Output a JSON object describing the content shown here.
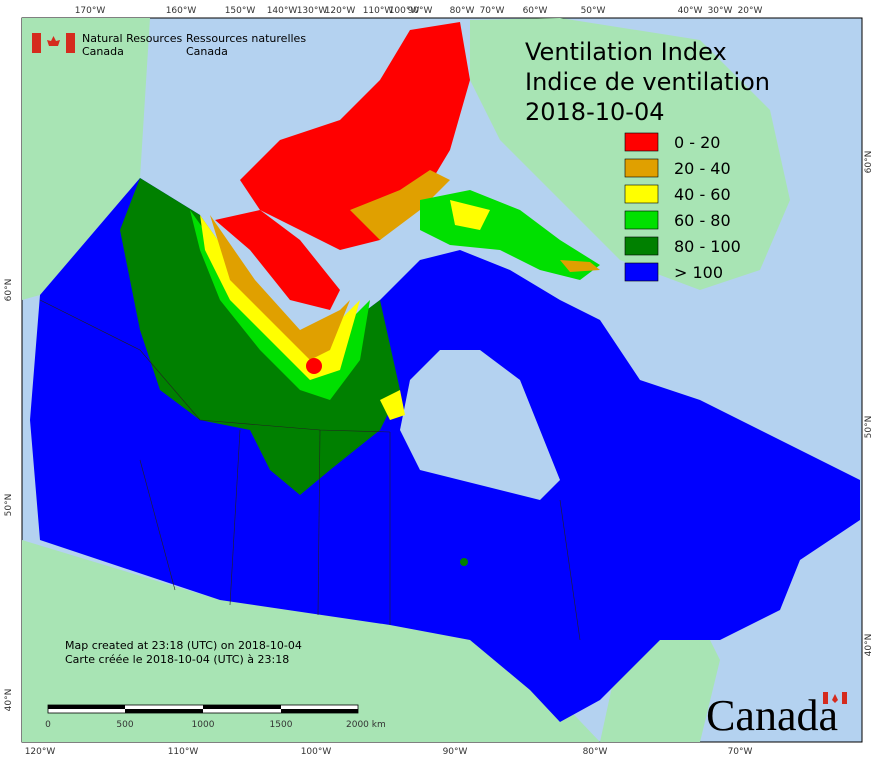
{
  "header": {
    "org_en": [
      "Natural Resources",
      "Canada"
    ],
    "org_fr": [
      "Ressources naturelles",
      "Canada"
    ]
  },
  "title": {
    "en": "Ventilation Index",
    "fr": "Indice de ventilation",
    "date": "2018-10-04"
  },
  "legend": [
    {
      "label": "0 - 20",
      "color": "#ff0000"
    },
    {
      "label": "20 - 40",
      "color": "#e0a000"
    },
    {
      "label": "40 - 60",
      "color": "#ffff00"
    },
    {
      "label": "60 - 80",
      "color": "#00e000"
    },
    {
      "label": "80 - 100",
      "color": "#008000"
    },
    {
      "label": "> 100",
      "color": "#0000ff"
    }
  ],
  "graticule": {
    "top": [
      "170°W",
      "160°W",
      "150°W",
      "140°W",
      "130°W",
      "120°W",
      "110°W",
      "100°W",
      "90°W",
      "80°W",
      "70°W",
      "60°W",
      "50°W",
      "40°W",
      "30°W",
      "20°W"
    ],
    "bottom": [
      "120°W",
      "110°W",
      "100°W",
      "90°W",
      "80°W",
      "70°W"
    ],
    "left": [
      "60°N",
      "50°N",
      "40°N"
    ],
    "right": [
      "60°N",
      "50°N",
      "40°N"
    ]
  },
  "footer": {
    "created_en": "Map created at 23:18 (UTC) on 2018-10-04",
    "created_fr": "Carte créée le 2018-10-04 (UTC) à 23:18"
  },
  "scale_bar": [
    "0",
    "500",
    "1000",
    "1500",
    "2000  km"
  ],
  "wordmark": "Canada"
}
